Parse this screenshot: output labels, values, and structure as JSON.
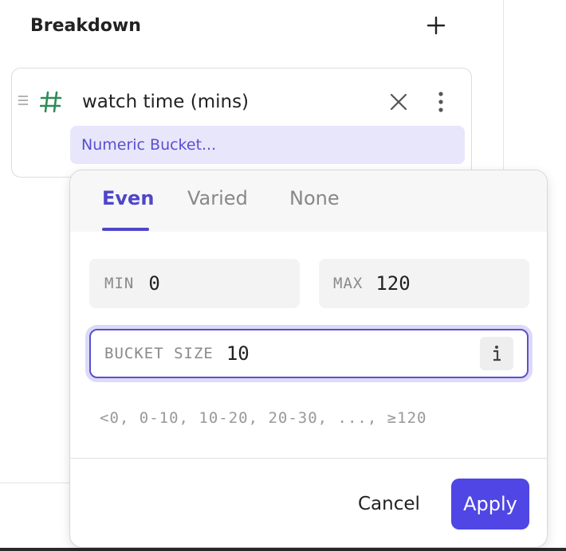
{
  "breakdown": {
    "title": "Breakdown",
    "field": "watch time (mins)",
    "bucket": "Numeric Bucket..."
  },
  "popup": {
    "tabs": [
      "Even",
      "Varied",
      "None"
    ],
    "min": {
      "label": "MIN",
      "value": 0
    },
    "max": {
      "label": "MAX",
      "value": 120
    },
    "bucket_size": {
      "label": "BUCKET SIZE",
      "value": 10
    },
    "preview": "<0, 0-10, 10-20, 20-30, ..., ≥120",
    "buttons": {
      "cancel": "Cancel",
      "apply": "Apply"
    }
  }
}
